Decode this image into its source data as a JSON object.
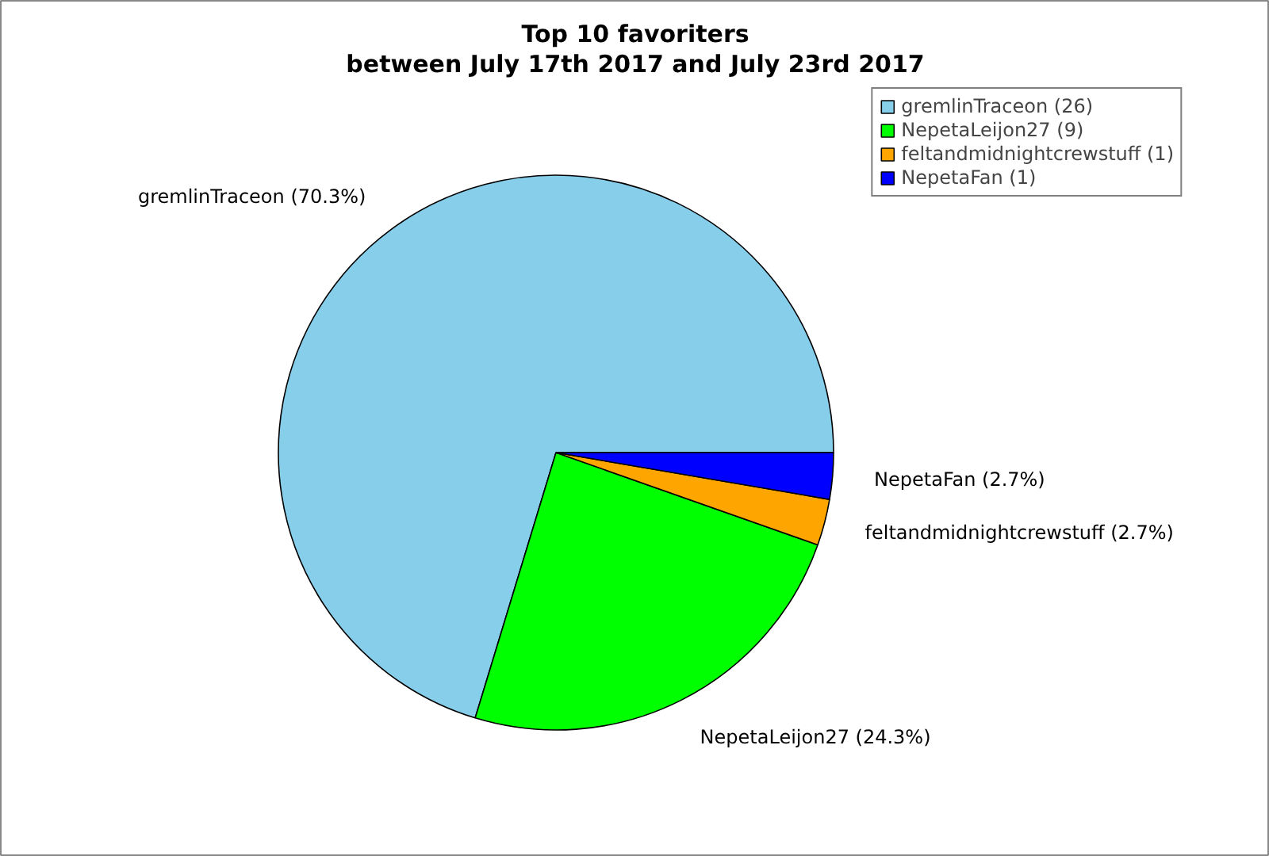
{
  "chart_data": {
    "type": "pie",
    "title": "Top 10 favoriters",
    "subtitle": "between July 17th 2017 and July 23rd 2017",
    "categories": [
      "gremlinTraceon (26)",
      "NepetaLeijon27 (9)",
      "feltandmidnightcrewstuff (1)",
      "NepetaFan (1)"
    ],
    "values": [
      70.3,
      24.3,
      2.7,
      2.7
    ],
    "value_labels": [
      "gremlinTraceon (70.3%)",
      "NepetaLeijon27 (24.3%)",
      "feltandmidnightcrewstuff (2.7%)",
      "NepetaFan (2.7%)"
    ],
    "colors": [
      "#87ceeb",
      "#00ff00",
      "#ffa500",
      "#0000ff"
    ],
    "legend": "top right"
  }
}
